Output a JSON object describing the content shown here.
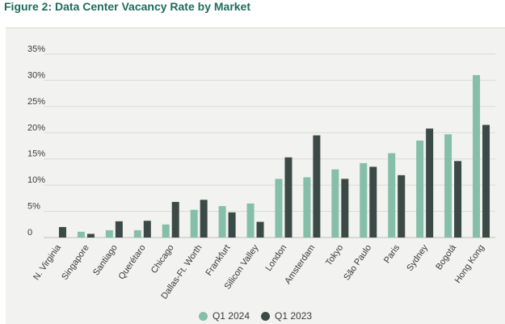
{
  "figure_title": "Figure 2: Data Center Vacancy Rate by Market",
  "colors": {
    "q1_2024": "#86bfa9",
    "q1_2023": "#3c4a47"
  },
  "chart_data": {
    "type": "bar",
    "title": "Figure 2: Data Center Vacancy Rate by Market",
    "xlabel": "",
    "ylabel": "",
    "ylim": [
      0,
      35
    ],
    "yticks": [
      0,
      5,
      10,
      15,
      20,
      25,
      30,
      35
    ],
    "ytick_labels": [
      "0",
      "5%",
      "10%",
      "15%",
      "20%",
      "25%",
      "30%",
      "35%"
    ],
    "grid": true,
    "legend_position": "bottom-center",
    "categories": [
      "N. Virginia",
      "Singapore",
      "Santiago",
      "Querétaro",
      "Chicago",
      "Dallas-Ft. Worth",
      "Frankfurt",
      "Silicon Valley",
      "London",
      "Amsterdam",
      "Tokyo",
      "São Paulo",
      "Paris",
      "Sydney",
      "Bogotá",
      "Hong Kong"
    ],
    "series": [
      {
        "name": "Q1 2024",
        "values": [
          0.0,
          1.1,
          1.4,
          1.4,
          2.5,
          5.3,
          6.0,
          6.5,
          11.2,
          11.5,
          13.0,
          14.2,
          16.1,
          18.5,
          19.7,
          31.0
        ]
      },
      {
        "name": "Q1 2023",
        "values": [
          2.0,
          0.7,
          3.1,
          3.2,
          6.8,
          7.2,
          4.8,
          3.0,
          15.3,
          19.5,
          11.2,
          13.5,
          11.9,
          20.8,
          14.6,
          21.5
        ]
      }
    ]
  }
}
